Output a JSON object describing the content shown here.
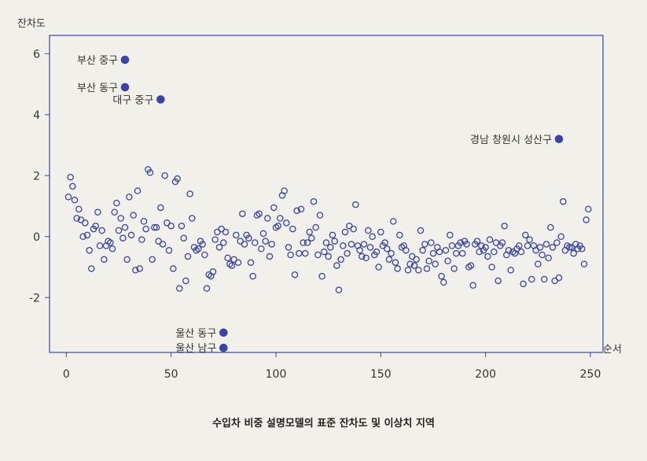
{
  "chart_data": {
    "type": "scatter",
    "ylabel": "잔차도",
    "xlabel": "순서",
    "xlim": [
      -8,
      256
    ],
    "ylim": [
      -3.8,
      6.6
    ],
    "xticks": [
      0,
      50,
      100,
      150,
      200,
      250
    ],
    "yticks": [
      -2,
      0,
      2,
      4,
      6
    ],
    "series": [
      {
        "marker": "open-circle",
        "color": "#3a43a8",
        "points": [
          [
            1,
            1.3
          ],
          [
            2,
            1.95
          ],
          [
            3,
            1.65
          ],
          [
            4,
            1.2
          ],
          [
            5,
            0.6
          ],
          [
            6,
            0.9
          ],
          [
            7,
            0.55
          ],
          [
            8,
            0
          ],
          [
            9,
            0.45
          ],
          [
            10,
            0.05
          ],
          [
            11,
            -0.45
          ],
          [
            12,
            -1.05
          ],
          [
            13,
            0.25
          ],
          [
            14,
            0.35
          ],
          [
            15,
            0.8
          ],
          [
            16,
            -0.3
          ],
          [
            17,
            0.2
          ],
          [
            18,
            -0.75
          ],
          [
            19,
            -0.3
          ],
          [
            20,
            -0.15
          ],
          [
            21,
            -0.2
          ],
          [
            22,
            -0.4
          ],
          [
            23,
            0.8
          ],
          [
            24,
            1.1
          ],
          [
            25,
            0.2
          ],
          [
            26,
            0.6
          ],
          [
            27,
            -0.05
          ],
          [
            28,
            0.3
          ],
          [
            29,
            -0.75
          ],
          [
            30,
            1.3
          ],
          [
            31,
            0.05
          ],
          [
            32,
            0.7
          ],
          [
            33,
            -1.1
          ],
          [
            34,
            1.5
          ],
          [
            35,
            -1.05
          ],
          [
            36,
            -0.1
          ],
          [
            37,
            0.5
          ],
          [
            38,
            0.25
          ],
          [
            39,
            2.2
          ],
          [
            40,
            2.1
          ],
          [
            41,
            -0.75
          ],
          [
            42,
            0.3
          ],
          [
            43,
            0.3
          ],
          [
            44,
            -0.15
          ],
          [
            45,
            0.95
          ],
          [
            46,
            -0.25
          ],
          [
            47,
            2.0
          ],
          [
            48,
            0.45
          ],
          [
            49,
            -0.45
          ],
          [
            50,
            0.35
          ],
          [
            51,
            -1.05
          ],
          [
            52,
            1.8
          ],
          [
            53,
            1.9
          ],
          [
            54,
            -1.7
          ],
          [
            55,
            0.35
          ],
          [
            56,
            -0.05
          ],
          [
            57,
            -1.45
          ],
          [
            58,
            -0.65
          ],
          [
            59,
            1.4
          ],
          [
            60,
            0.6
          ],
          [
            61,
            -0.35
          ],
          [
            62,
            -0.45
          ],
          [
            63,
            -0.4
          ],
          [
            64,
            -0.15
          ],
          [
            65,
            -0.25
          ],
          [
            66,
            -0.6
          ],
          [
            67,
            -1.7
          ],
          [
            68,
            -1.25
          ],
          [
            69,
            -1.3
          ],
          [
            70,
            -1.15
          ],
          [
            71,
            -0.1
          ],
          [
            72,
            0.15
          ],
          [
            73,
            -0.35
          ],
          [
            74,
            0.25
          ],
          [
            75,
            -0.2
          ],
          [
            76,
            0.15
          ],
          [
            77,
            -0.7
          ],
          [
            78,
            -0.9
          ],
          [
            79,
            -0.95
          ],
          [
            80,
            -0.75
          ],
          [
            81,
            0.05
          ],
          [
            82,
            -0.85
          ],
          [
            83,
            -0.15
          ],
          [
            84,
            0.75
          ],
          [
            85,
            -0.25
          ],
          [
            86,
            0.05
          ],
          [
            87,
            -0.05
          ],
          [
            88,
            -0.85
          ],
          [
            89,
            -1.3
          ],
          [
            90,
            -0.2
          ],
          [
            91,
            0.7
          ],
          [
            92,
            0.75
          ],
          [
            93,
            -0.4
          ],
          [
            94,
            0.1
          ],
          [
            95,
            -0.15
          ],
          [
            96,
            0.6
          ],
          [
            97,
            -0.65
          ],
          [
            98,
            -0.25
          ],
          [
            99,
            0.95
          ],
          [
            100,
            0.3
          ],
          [
            101,
            0.35
          ],
          [
            102,
            0.6
          ],
          [
            103,
            1.35
          ],
          [
            104,
            1.5
          ],
          [
            105,
            0.45
          ],
          [
            106,
            -0.35
          ],
          [
            107,
            -0.6
          ],
          [
            108,
            0.25
          ],
          [
            109,
            -1.25
          ],
          [
            110,
            0.85
          ],
          [
            111,
            -0.55
          ],
          [
            112,
            0.9
          ],
          [
            113,
            -0.2
          ],
          [
            114,
            -0.55
          ],
          [
            115,
            -0.2
          ],
          [
            116,
            0.15
          ],
          [
            117,
            -0.05
          ],
          [
            118,
            1.15
          ],
          [
            119,
            0.3
          ],
          [
            120,
            -0.6
          ],
          [
            121,
            0.7
          ],
          [
            122,
            -1.3
          ],
          [
            123,
            -0.5
          ],
          [
            124,
            -0.2
          ],
          [
            125,
            -0.65
          ],
          [
            126,
            -0.35
          ],
          [
            127,
            0.05
          ],
          [
            128,
            -0.15
          ],
          [
            129,
            -0.95
          ],
          [
            130,
            -1.75
          ],
          [
            131,
            -0.75
          ],
          [
            132,
            -0.3
          ],
          [
            133,
            0.15
          ],
          [
            134,
            -0.55
          ],
          [
            135,
            0.35
          ],
          [
            136,
            -0.25
          ],
          [
            137,
            0.25
          ],
          [
            138,
            1.05
          ],
          [
            139,
            -0.3
          ],
          [
            140,
            -0.45
          ],
          [
            141,
            -0.65
          ],
          [
            142,
            -0.25
          ],
          [
            143,
            -0.7
          ],
          [
            144,
            0.2
          ],
          [
            145,
            -0.35
          ],
          [
            146,
            0
          ],
          [
            147,
            -0.6
          ],
          [
            148,
            -0.5
          ],
          [
            149,
            -1.0
          ],
          [
            150,
            0.15
          ],
          [
            151,
            -0.3
          ],
          [
            152,
            -0.2
          ],
          [
            153,
            -0.4
          ],
          [
            154,
            -0.75
          ],
          [
            155,
            -0.55
          ],
          [
            156,
            0.5
          ],
          [
            157,
            -0.85
          ],
          [
            158,
            -1.05
          ],
          [
            159,
            0.05
          ],
          [
            160,
            -0.35
          ],
          [
            161,
            -0.3
          ],
          [
            162,
            -0.45
          ],
          [
            163,
            -1.1
          ],
          [
            164,
            -0.9
          ],
          [
            165,
            -0.65
          ],
          [
            166,
            -0.95
          ],
          [
            167,
            -0.75
          ],
          [
            168,
            -1.1
          ],
          [
            169,
            0.2
          ],
          [
            170,
            -0.45
          ],
          [
            171,
            -0.25
          ],
          [
            172,
            -1.05
          ],
          [
            173,
            -0.8
          ],
          [
            174,
            -0.2
          ],
          [
            175,
            -0.55
          ],
          [
            176,
            -0.9
          ],
          [
            177,
            -0.35
          ],
          [
            178,
            -0.5
          ],
          [
            179,
            -1.3
          ],
          [
            180,
            -1.5
          ],
          [
            181,
            -0.45
          ],
          [
            182,
            -0.8
          ],
          [
            183,
            0.05
          ],
          [
            184,
            -0.3
          ],
          [
            185,
            -1.05
          ],
          [
            186,
            -0.55
          ],
          [
            187,
            -0.3
          ],
          [
            188,
            -0.2
          ],
          [
            189,
            -0.55
          ],
          [
            190,
            -0.15
          ],
          [
            191,
            -0.25
          ],
          [
            192,
            -1.0
          ],
          [
            193,
            -0.95
          ],
          [
            194,
            -1.6
          ],
          [
            195,
            -0.25
          ],
          [
            196,
            -0.15
          ],
          [
            197,
            -0.5
          ],
          [
            198,
            -0.3
          ],
          [
            199,
            -0.45
          ],
          [
            200,
            -0.35
          ],
          [
            201,
            -0.65
          ],
          [
            202,
            -0.1
          ],
          [
            203,
            -1.0
          ],
          [
            204,
            -0.5
          ],
          [
            205,
            -0.2
          ],
          [
            206,
            -1.45
          ],
          [
            207,
            -0.3
          ],
          [
            208,
            -0.2
          ],
          [
            209,
            0.35
          ],
          [
            210,
            -0.6
          ],
          [
            211,
            -0.45
          ],
          [
            212,
            -1.1
          ],
          [
            213,
            -0.5
          ],
          [
            214,
            -0.55
          ],
          [
            215,
            -0.4
          ],
          [
            216,
            -0.3
          ],
          [
            217,
            -0.5
          ],
          [
            218,
            -1.55
          ],
          [
            219,
            0.05
          ],
          [
            220,
            -0.3
          ],
          [
            221,
            -0.1
          ],
          [
            222,
            -1.4
          ],
          [
            223,
            -0.3
          ],
          [
            224,
            -0.45
          ],
          [
            225,
            -0.9
          ],
          [
            226,
            -0.35
          ],
          [
            227,
            -0.6
          ],
          [
            228,
            -1.4
          ],
          [
            229,
            -0.25
          ],
          [
            230,
            -0.7
          ],
          [
            231,
            0.3
          ],
          [
            232,
            -0.35
          ],
          [
            233,
            -1.45
          ],
          [
            234,
            -0.2
          ],
          [
            235,
            -1.35
          ],
          [
            236,
            0
          ],
          [
            237,
            1.15
          ],
          [
            238,
            -0.45
          ],
          [
            239,
            -0.3
          ],
          [
            240,
            -0.35
          ],
          [
            241,
            -0.35
          ],
          [
            242,
            -0.55
          ],
          [
            243,
            -0.25
          ],
          [
            244,
            -0.4
          ],
          [
            245,
            -0.3
          ],
          [
            246,
            -0.4
          ],
          [
            247,
            -0.9
          ],
          [
            248,
            0.55
          ],
          [
            249,
            0.9
          ]
        ]
      },
      {
        "marker": "filled-circle",
        "color": "#3a43a8",
        "points": [
          {
            "x": 28,
            "y": 5.8,
            "label": "부산 중구"
          },
          {
            "x": 28,
            "y": 4.9,
            "label": "부산 동구"
          },
          {
            "x": 45,
            "y": 4.5,
            "label": "대구 중구"
          },
          {
            "x": 235,
            "y": 3.2,
            "label": "경남 창원시 성산구"
          },
          {
            "x": 75,
            "y": -3.15,
            "label": "울산 동구"
          },
          {
            "x": 75,
            "y": -3.65,
            "label": "울산 남구"
          }
        ]
      }
    ]
  },
  "caption": "수입차 비중 설명모델의 표준 잔차도 및 이상치 지역"
}
